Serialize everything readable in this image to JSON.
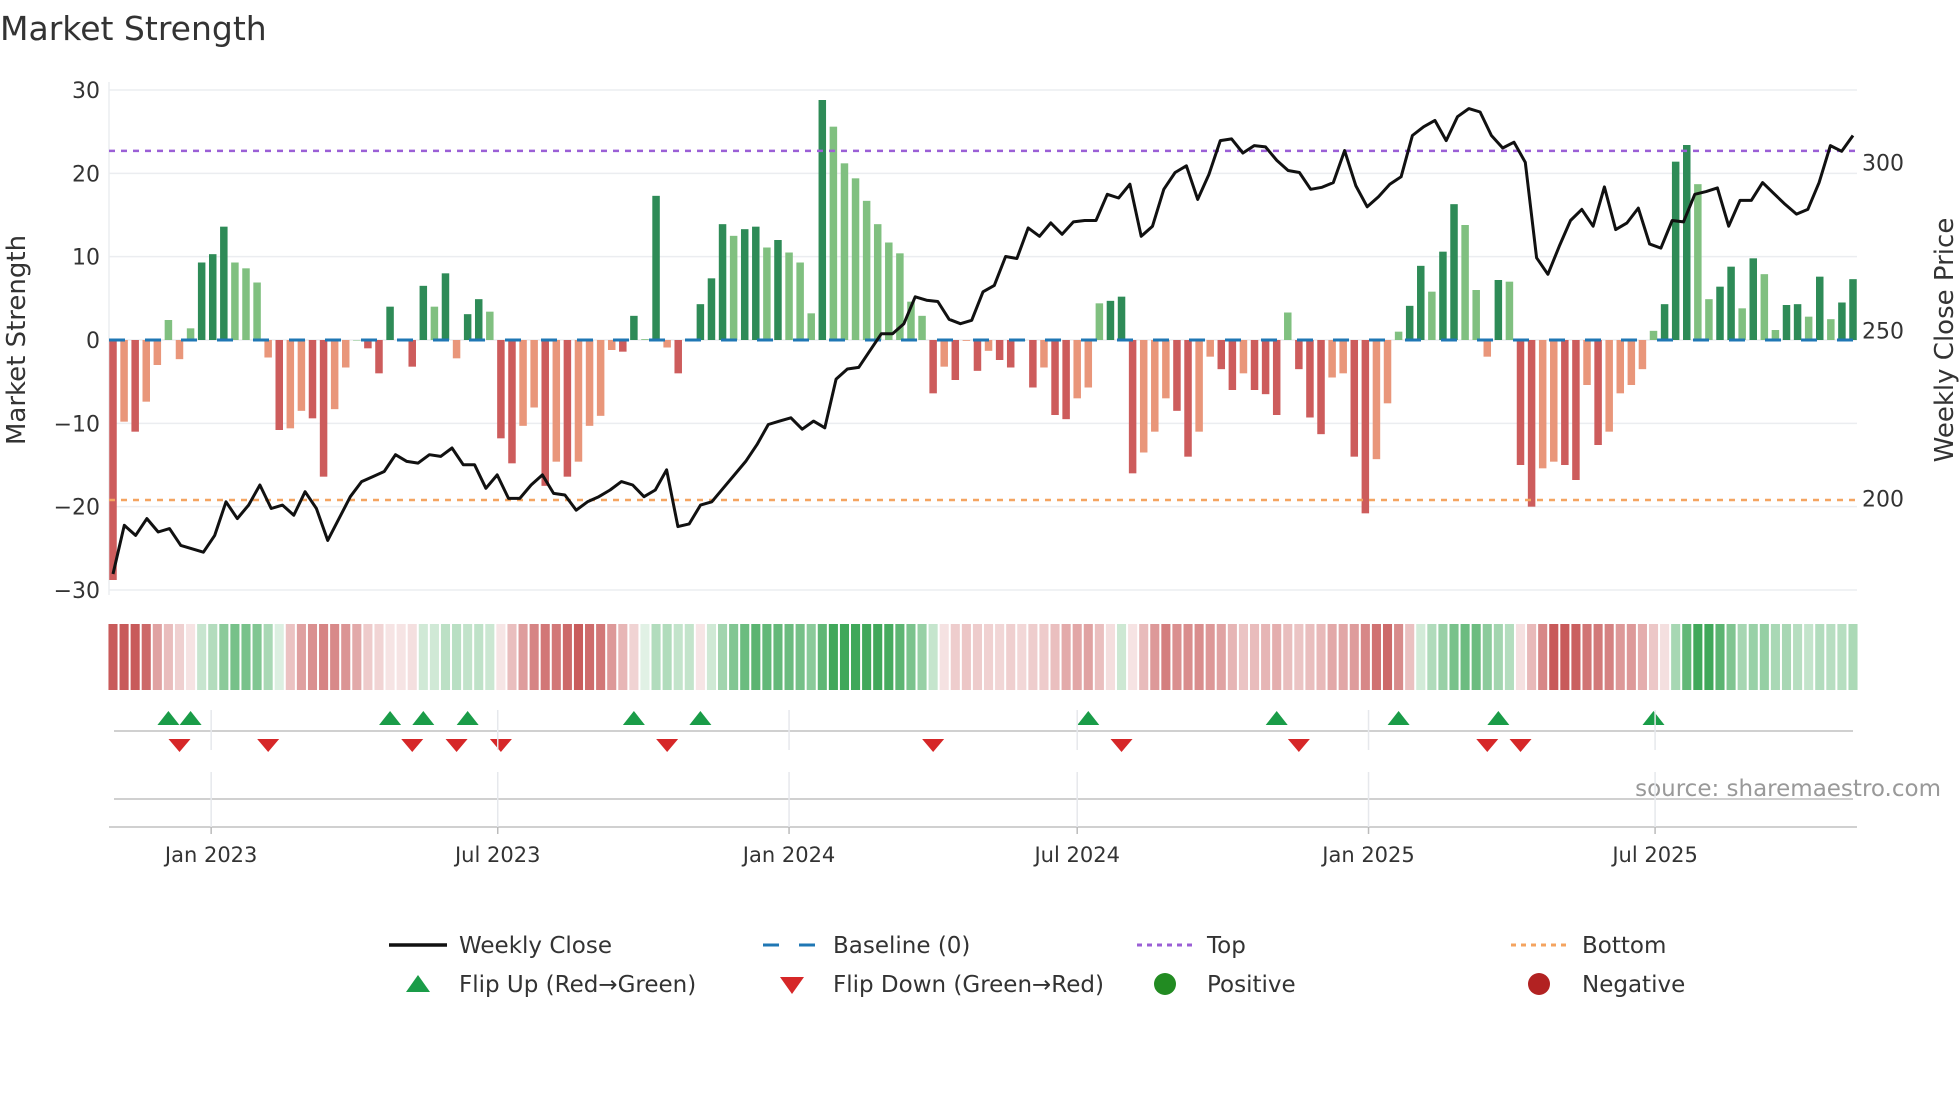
{
  "chart_data": {
    "type": "bar",
    "title": "Market Strength",
    "ylabel": "Market Strength",
    "y2label": "Weekly Close Price",
    "source": "source: sharemaestro.com",
    "ylim": [
      -30,
      30
    ],
    "yticks": [
      -30,
      -20,
      -10,
      0,
      10,
      20,
      30
    ],
    "y2lim": [
      175.6,
      324.3
    ],
    "y2ticks": [
      200,
      250,
      300
    ],
    "start_date": "2022-10-31",
    "frequency": "weekly",
    "top_level": 22.7,
    "bottom_level": -19.2,
    "xticks": [
      {
        "date": "2023-01-01",
        "label": "Jan 2023"
      },
      {
        "date": "2023-07-01",
        "label": "Jul 2023"
      },
      {
        "date": "2024-01-01",
        "label": "Jan 2024"
      },
      {
        "date": "2024-07-01",
        "label": "Jul 2024"
      },
      {
        "date": "2025-01-01",
        "label": "Jan 2025"
      },
      {
        "date": "2025-07-01",
        "label": "Jul 2025"
      }
    ],
    "strength": [
      -28.8,
      -9.8,
      -11,
      -7.4,
      -3,
      2.4,
      -2.3,
      1.4,
      9.3,
      10.3,
      13.6,
      9.3,
      8.6,
      6.9,
      -2.1,
      -10.8,
      -10.6,
      -8.5,
      -9.4,
      -16.4,
      -8.3,
      -3.3,
      0,
      -1,
      -4,
      4,
      0.1,
      -3.2,
      6.5,
      4,
      8,
      -2.2,
      3.1,
      4.9,
      3.4,
      -11.8,
      -14.8,
      -10.3,
      -8.1,
      -17.5,
      -14.6,
      -16.4,
      -14.6,
      -10.3,
      -9.1,
      -1.2,
      -1.4,
      2.9,
      0.1,
      17.3,
      -0.9,
      -4,
      0,
      4.3,
      7.4,
      13.9,
      12.5,
      13.3,
      13.6,
      11.1,
      12,
      10.5,
      9.3,
      3.2,
      28.8,
      25.6,
      21.2,
      19.4,
      16.7,
      13.9,
      11.7,
      10.4,
      4.6,
      2.9,
      -6.4,
      -3.2,
      -4.8,
      -0.1,
      -3.7,
      -1.3,
      -2.4,
      -3.3,
      0,
      -5.7,
      -3.3,
      -9,
      -9.5,
      -7,
      -5.7,
      4.4,
      4.7,
      5.2,
      -16,
      -13.5,
      -11,
      -7,
      -8.5,
      -14,
      -11,
      -2,
      -3.5,
      -6,
      -4,
      -6,
      -6.5,
      -9,
      3.3,
      -3.5,
      -9.3,
      -11.3,
      -4.5,
      -4,
      -14,
      -20.8,
      -14.3,
      -7.6,
      1,
      4.1,
      8.9,
      5.8,
      10.6,
      16.3,
      13.8,
      6,
      -2,
      7.2,
      7,
      -15,
      -20,
      -15.4,
      -14.6,
      -15,
      -16.8,
      -5.4,
      -12.6,
      -11,
      -6.4,
      -5.4,
      -3.5,
      1.1,
      4.3,
      21.4,
      23.4,
      18.7,
      4.9,
      6.4,
      8.8,
      3.8,
      9.8,
      7.9,
      1.2,
      4.2,
      4.3,
      2.8,
      7.6,
      2.5,
      4.5,
      7.3
    ],
    "weekly_close": [
      177.5,
      192,
      189,
      194,
      190,
      191,
      186,
      185,
      184,
      189,
      199,
      194,
      198,
      204,
      197,
      198,
      195,
      202,
      197,
      187.5,
      194,
      200.5,
      205,
      206.5,
      208,
      213,
      211,
      210.5,
      213,
      212.5,
      215,
      210,
      210,
      203,
      207,
      200,
      200,
      204,
      207,
      201.5,
      201,
      196.5,
      199,
      200.5,
      202.5,
      205,
      204,
      200.5,
      202.5,
      208.5,
      191.6,
      192.4,
      198,
      199,
      203,
      207,
      211,
      216,
      222,
      223,
      224,
      220.6,
      223,
      221,
      235.5,
      238.5,
      239,
      244,
      249,
      249,
      252,
      260,
      259,
      258.6,
      253.3,
      252,
      253,
      261.5,
      263.4,
      272,
      271.4,
      280.5,
      278,
      282,
      278.6,
      282.3,
      282.7,
      282.7,
      290.5,
      289.4,
      293.5,
      278,
      281,
      292,
      297,
      299,
      289,
      296.5,
      306.5,
      307,
      302.8,
      305,
      304.6,
      300.6,
      297.6,
      297,
      292,
      292.6,
      294,
      303.5,
      293,
      286.8,
      289.8,
      293.5,
      295.7,
      308,
      310.6,
      312.5,
      306.5,
      313.6,
      316,
      315,
      308,
      304.3,
      306,
      300,
      271.6,
      266.7,
      275,
      282.7,
      286,
      281,
      292.7,
      280,
      282,
      286.4,
      275.7,
      274.5,
      282.7,
      282.3,
      290.5,
      291.3,
      292.4,
      281,
      288.7,
      288.7,
      294,
      290.7,
      287.5,
      284.6,
      286,
      294,
      305,
      303.3,
      308
    ],
    "flip_up_weeks": [
      5,
      7,
      25,
      28,
      32,
      47,
      53,
      88,
      105,
      116,
      125,
      139
    ],
    "flip_down_weeks": [
      6,
      14,
      27,
      31,
      35,
      50,
      74,
      91,
      107,
      124,
      127
    ],
    "colors": {
      "pos_strong": "#2e8b57",
      "pos_weak": "#80c080",
      "neg_strong": "#cd5c5c",
      "neg_weak": "#e9967a",
      "baseline": "#1f77b4",
      "top": "#9b5fd6",
      "bottom": "#f4a460",
      "close": "#111111",
      "flip_up": "#1a9c48",
      "flip_down": "#d62728",
      "positive": "#228b22",
      "negative": "#b22222"
    },
    "legend": {
      "placement": "bottom",
      "items": [
        {
          "key": "close",
          "label": "Weekly Close",
          "kind": "line"
        },
        {
          "key": "baseline",
          "label": "Baseline (0)",
          "kind": "dash"
        },
        {
          "key": "top",
          "label": "Top",
          "kind": "dot"
        },
        {
          "key": "bottom",
          "label": "Bottom",
          "kind": "dot"
        },
        {
          "key": "flip_up",
          "label": "Flip Up (Red→Green)",
          "kind": "tri-up"
        },
        {
          "key": "flip_down",
          "label": "Flip Down (Green→Red)",
          "kind": "tri-down"
        },
        {
          "key": "positive",
          "label": "Positive",
          "kind": "circle"
        },
        {
          "key": "negative",
          "label": "Negative",
          "kind": "circle"
        }
      ]
    }
  }
}
